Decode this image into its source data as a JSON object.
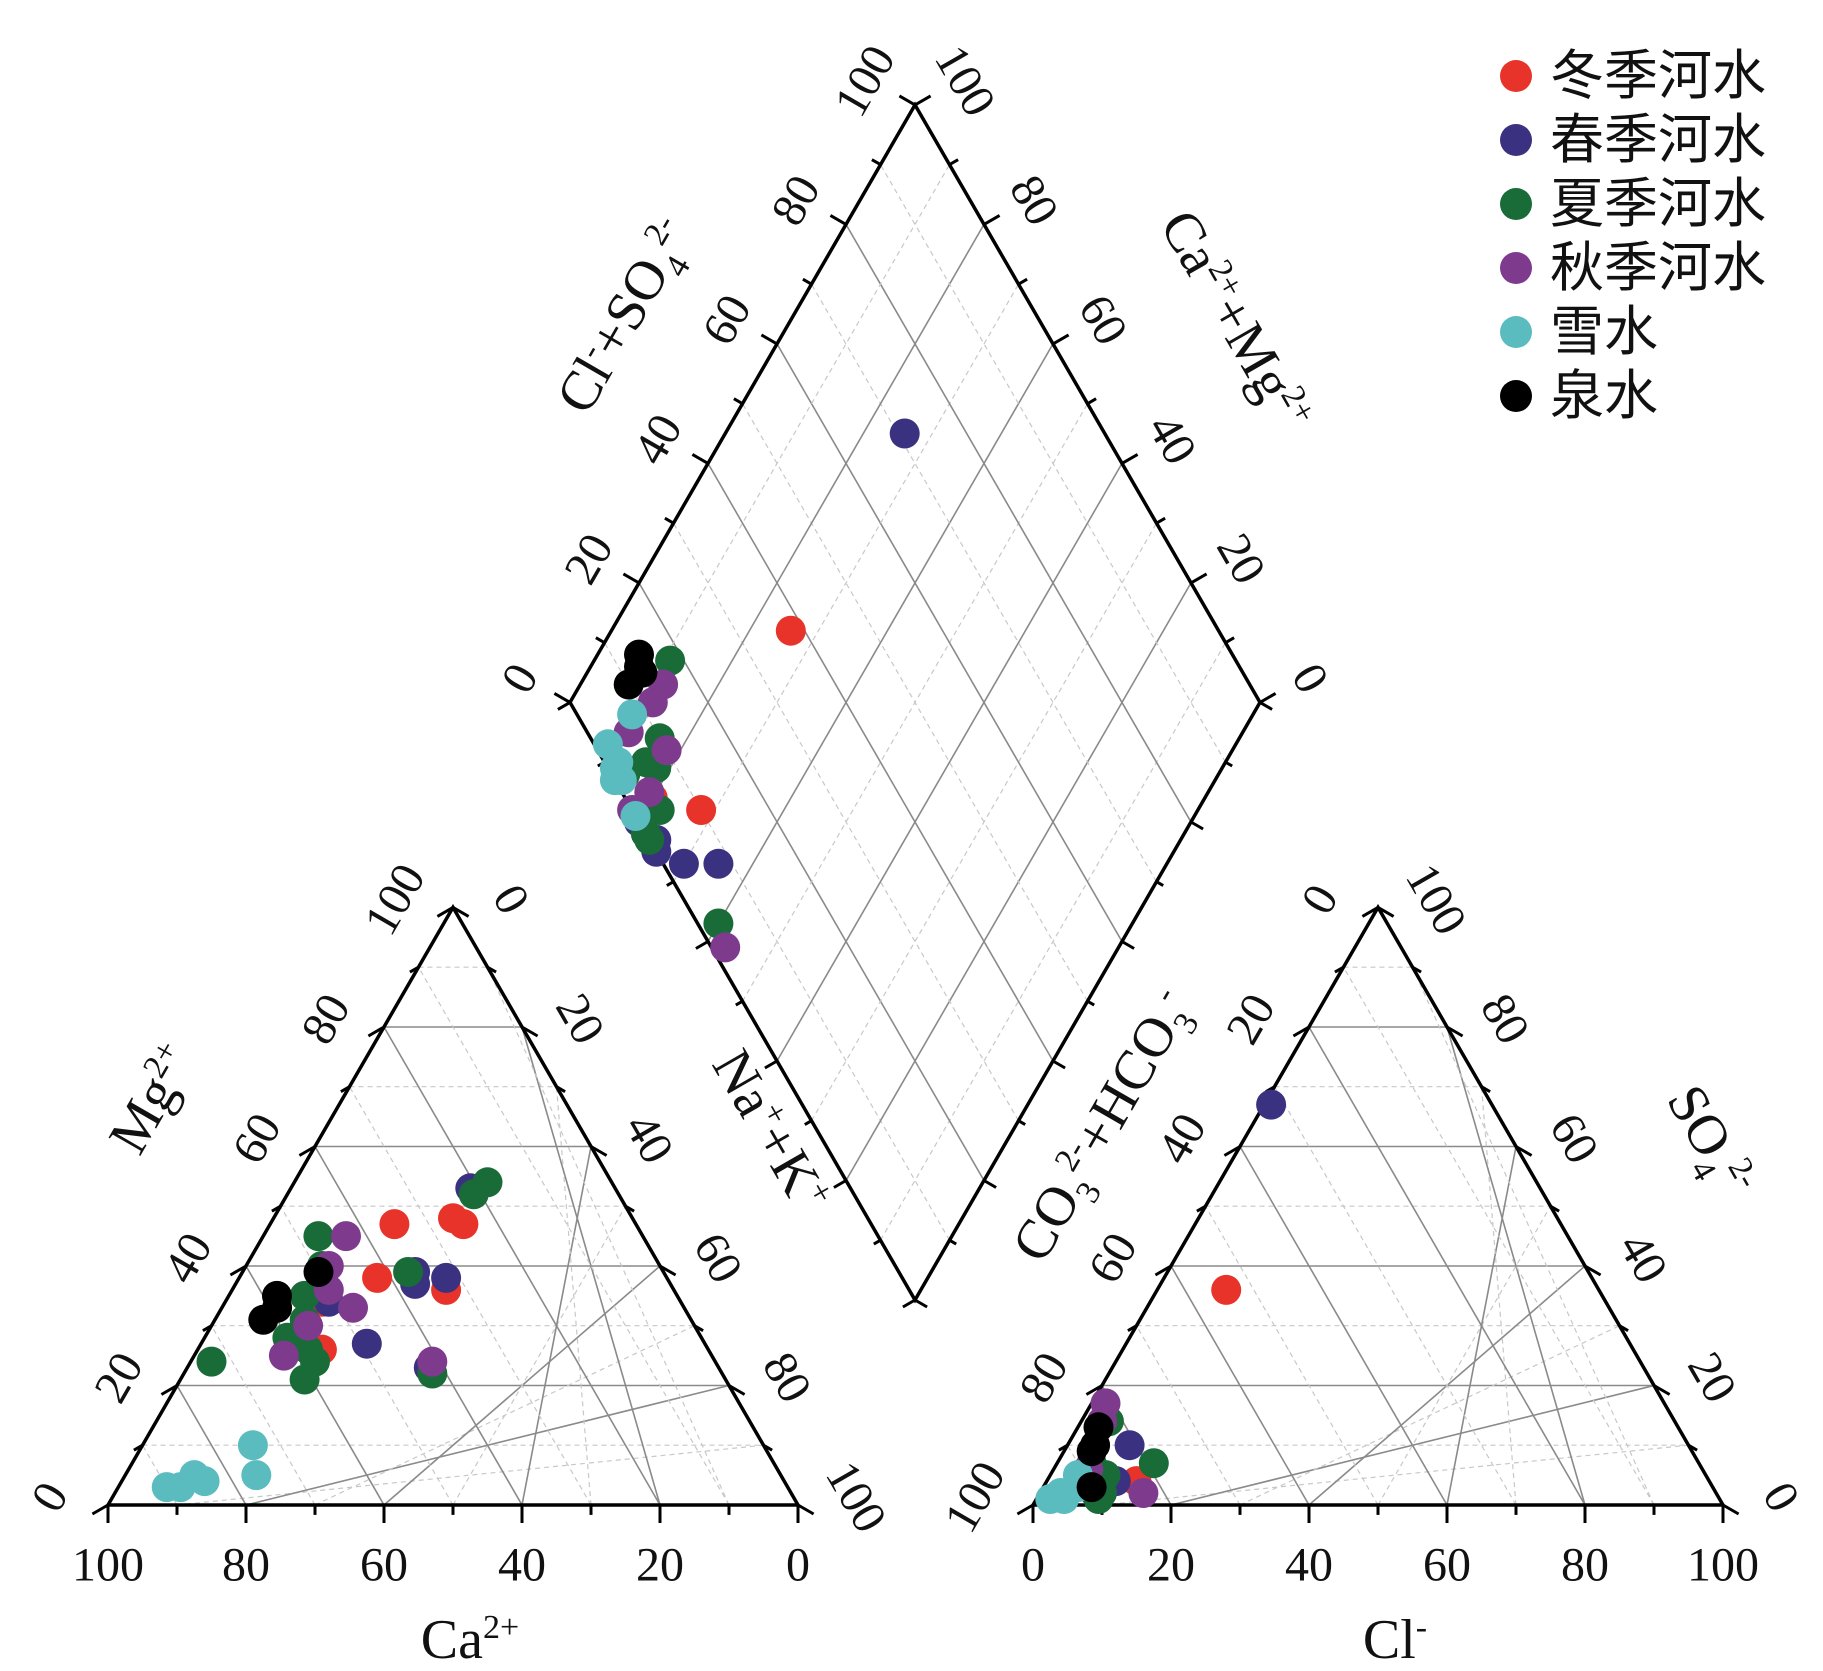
{
  "chart_data": {
    "type": "scatter",
    "subtype": "piper-trilinear",
    "colors": {
      "冬季河水": "#e8332a",
      "春季河水": "#3a3280",
      "夏季河水": "#196b38",
      "秋季河水": "#7e3a8c",
      "雪水": "#5bbcbf",
      "泉水": "#000000"
    },
    "legend": {
      "placement": "top-right",
      "entries": [
        "冬季河水",
        "春季河水",
        "夏季河水",
        "秋季河水",
        "雪水",
        "泉水"
      ]
    },
    "tick_values": [
      "0",
      "20",
      "40",
      "60",
      "80",
      "100"
    ],
    "axes": {
      "cation": {
        "bottom_title": "Ca²⁺",
        "bottom_base": "Ca",
        "bottom_sup": "2+",
        "left_title": "Mg²⁺",
        "left_base": "Mg",
        "left_sup": "2+",
        "right_title": "Na⁺+K⁺"
      },
      "anion": {
        "bottom_title": "Cl⁻",
        "bottom_base": "Cl",
        "bottom_sup": "-",
        "left_title": "CO₃²⁻+HCO₃⁻",
        "right_title": "SO₄²⁻"
      },
      "diamond": {
        "left_title": "Cl⁻+SO₄²⁻",
        "right_title": "Ca²⁺+Mg²⁺"
      }
    },
    "cation_points": [
      {
        "series": "冬季河水",
        "Mg": 47,
        "Na_K": 18
      },
      {
        "series": "冬季河水",
        "Mg": 48,
        "Na_K": 26
      },
      {
        "series": "冬季河水",
        "Mg": 47,
        "Na_K": 28
      },
      {
        "series": "冬季河水",
        "Mg": 38,
        "Na_K": 20
      },
      {
        "series": "冬季河水",
        "Mg": 36,
        "Na_K": 31
      },
      {
        "series": "冬季河水",
        "Mg": 26,
        "Na_K": 18
      },
      {
        "series": "冬季河水",
        "Mg": 34,
        "Na_K": 14
      },
      {
        "series": "春季河水",
        "Mg": 53,
        "Na_K": 26
      },
      {
        "series": "春季河水",
        "Mg": 39,
        "Na_K": 25
      },
      {
        "series": "春季河水",
        "Mg": 37,
        "Na_K": 26
      },
      {
        "series": "春季河水",
        "Mg": 38,
        "Na_K": 30
      },
      {
        "series": "春季河水",
        "Mg": 27,
        "Na_K": 24
      },
      {
        "series": "春季河水",
        "Mg": 23,
        "Na_K": 35
      },
      {
        "series": "春季河水",
        "Mg": 34,
        "Na_K": 15
      },
      {
        "series": "夏季河水",
        "Mg": 54,
        "Na_K": 28
      },
      {
        "series": "夏季河水",
        "Mg": 52,
        "Na_K": 27
      },
      {
        "series": "夏季河水",
        "Mg": 45,
        "Na_K": 8
      },
      {
        "series": "夏季河水",
        "Mg": 40,
        "Na_K": 11
      },
      {
        "series": "夏季河水",
        "Mg": 39,
        "Na_K": 24
      },
      {
        "series": "夏季河水",
        "Mg": 35,
        "Na_K": 11
      },
      {
        "series": "夏季河水",
        "Mg": 31,
        "Na_K": 13
      },
      {
        "series": "夏季河水",
        "Mg": 28,
        "Na_K": 12
      },
      {
        "series": "夏季河水",
        "Mg": 26,
        "Na_K": 16
      },
      {
        "series": "夏季河水",
        "Mg": 24,
        "Na_K": 18
      },
      {
        "series": "夏季河水",
        "Mg": 21,
        "Na_K": 18
      },
      {
        "series": "夏季河水",
        "Mg": 24,
        "Na_K": 3
      },
      {
        "series": "夏季河水",
        "Mg": 22,
        "Na_K": 36
      },
      {
        "series": "秋季河水",
        "Mg": 45,
        "Na_K": 12
      },
      {
        "series": "秋季河水",
        "Mg": 40,
        "Na_K": 12
      },
      {
        "series": "秋季河水",
        "Mg": 36,
        "Na_K": 14
      },
      {
        "series": "秋季河水",
        "Mg": 33,
        "Na_K": 19
      },
      {
        "series": "秋季河水",
        "Mg": 30,
        "Na_K": 14
      },
      {
        "series": "秋季河水",
        "Mg": 25,
        "Na_K": 13
      },
      {
        "series": "秋季河水",
        "Mg": 24,
        "Na_K": 35
      },
      {
        "series": "雪水",
        "Mg": 10,
        "Na_K": 16
      },
      {
        "series": "雪水",
        "Mg": 5,
        "Na_K": 19
      },
      {
        "series": "雪水",
        "Mg": 4,
        "Na_K": 12
      },
      {
        "series": "雪水",
        "Mg": 5,
        "Na_K": 10
      },
      {
        "series": "雪水",
        "Mg": 3,
        "Na_K": 9
      },
      {
        "series": "雪水",
        "Mg": 3,
        "Na_K": 7
      },
      {
        "series": "泉水",
        "Mg": 39,
        "Na_K": 11
      },
      {
        "series": "泉水",
        "Mg": 35,
        "Na_K": 7
      },
      {
        "series": "泉水",
        "Mg": 33,
        "Na_K": 8
      },
      {
        "series": "泉水",
        "Mg": 31,
        "Na_K": 7
      }
    ],
    "anion_points": [
      {
        "series": "冬季河水",
        "Cl": 10,
        "SO4": 36
      },
      {
        "series": "冬季河水",
        "Cl": 13,
        "SO4": 4
      },
      {
        "series": "冬季河水",
        "Cl": 5,
        "SO4": 5
      },
      {
        "series": "春季河水",
        "Cl": 1,
        "SO4": 67
      },
      {
        "series": "春季河水",
        "Cl": 9,
        "SO4": 10
      },
      {
        "series": "春季河水",
        "Cl": 10,
        "SO4": 4
      },
      {
        "series": "春季河水",
        "Cl": 8,
        "SO4": 2
      },
      {
        "series": "夏季河水",
        "Cl": 4,
        "SO4": 14
      },
      {
        "series": "夏季河水",
        "Cl": 14,
        "SO4": 7
      },
      {
        "series": "夏季河水",
        "Cl": 8,
        "SO4": 5
      },
      {
        "series": "夏季河水",
        "Cl": 5,
        "SO4": 7
      },
      {
        "series": "夏季河水",
        "Cl": 9,
        "SO4": 2
      },
      {
        "series": "夏季河水",
        "Cl": 9,
        "SO4": 1
      },
      {
        "series": "夏季河水",
        "Cl": 7,
        "SO4": 3
      },
      {
        "series": "秋季河水",
        "Cl": 2,
        "SO4": 17
      },
      {
        "series": "秋季河水",
        "Cl": 3,
        "SO4": 14
      },
      {
        "series": "秋季河水",
        "Cl": 15,
        "SO4": 2
      },
      {
        "series": "秋季河水",
        "Cl": 5,
        "SO4": 6
      },
      {
        "series": "雪水",
        "Cl": 4,
        "SO4": 5
      },
      {
        "series": "雪水",
        "Cl": 5,
        "SO4": 3
      },
      {
        "series": "雪水",
        "Cl": 4,
        "SO4": 1
      },
      {
        "series": "雪水",
        "Cl": 3,
        "SO4": 2
      },
      {
        "series": "雪水",
        "Cl": 2,
        "SO4": 1
      },
      {
        "series": "泉水",
        "Cl": 3,
        "SO4": 13
      },
      {
        "series": "泉水",
        "Cl": 4,
        "SO4": 9
      },
      {
        "series": "泉水",
        "Cl": 4,
        "SO4": 10
      },
      {
        "series": "泉水",
        "Cl": 7,
        "SO4": 3
      }
    ],
    "diamond_points": [
      {
        "series": "冬季河水",
        "Cl_SO4": 38,
        "Na_K": 26
      },
      {
        "series": "冬季河水",
        "Cl_SO4": 10,
        "Na_K": 28
      },
      {
        "series": "冬季河水",
        "Cl_SO4": 4,
        "Na_K": 20
      },
      {
        "series": "冬季河水",
        "Cl_SO4": 2,
        "Na_K": 14
      },
      {
        "series": "春季河水",
        "Cl_SO4": 71,
        "Na_K": 26
      },
      {
        "series": "春季河水",
        "Cl_SO4": 8,
        "Na_K": 35
      },
      {
        "series": "春季河水",
        "Cl_SO4": 0,
        "Na_K": 25
      },
      {
        "series": "春季河水",
        "Cl_SO4": 3,
        "Na_K": 30
      },
      {
        "series": "春季河水",
        "Cl_SO4": 1,
        "Na_K": 24
      },
      {
        "series": "春季河水",
        "Cl_SO4": 0,
        "Na_K": 20
      },
      {
        "series": "夏季河水",
        "Cl_SO4": 18,
        "Na_K": 11
      },
      {
        "series": "夏季河水",
        "Cl_SO4": 10,
        "Na_K": 16
      },
      {
        "series": "夏季河水",
        "Cl_SO4": 7,
        "Na_K": 18
      },
      {
        "series": "夏季河水",
        "Cl_SO4": 6,
        "Na_K": 16
      },
      {
        "series": "夏季河水",
        "Cl_SO4": 4,
        "Na_K": 22
      },
      {
        "series": "夏季河水",
        "Cl_SO4": 2,
        "Na_K": 14
      },
      {
        "series": "夏季河水",
        "Cl_SO4": 1,
        "Na_K": 20
      },
      {
        "series": "夏季河水",
        "Cl_SO4": 0,
        "Na_K": 23
      },
      {
        "series": "夏季河水",
        "Cl_SO4": 0,
        "Na_K": 22
      },
      {
        "series": "夏季河水",
        "Cl_SO4": 3,
        "Na_K": 40
      },
      {
        "series": "秋季河水",
        "Cl_SO4": 15,
        "Na_K": 12
      },
      {
        "series": "秋季河水",
        "Cl_SO4": 12,
        "Na_K": 12
      },
      {
        "series": "秋季河水",
        "Cl_SO4": 10,
        "Na_K": 18
      },
      {
        "series": "秋季河水",
        "Cl_SO4": 6,
        "Na_K": 11
      },
      {
        "series": "秋季河水",
        "Cl_SO4": 4,
        "Na_K": 19
      },
      {
        "series": "秋季河水",
        "Cl_SO4": 0,
        "Na_K": 18
      },
      {
        "series": "秋季河水",
        "Cl_SO4": 2,
        "Na_K": 43
      },
      {
        "series": "雪水",
        "Cl_SO4": 8,
        "Na_K": 10
      },
      {
        "series": "雪水",
        "Cl_SO4": 2,
        "Na_K": 9
      },
      {
        "series": "雪水",
        "Cl_SO4": 1,
        "Na_K": 12
      },
      {
        "series": "雪水",
        "Cl_SO4": 2,
        "Na_K": 12
      },
      {
        "series": "雪水",
        "Cl_SO4": 1,
        "Na_K": 14
      },
      {
        "series": "雪水",
        "Cl_SO4": 0,
        "Na_K": 13
      },
      {
        "series": "雪水",
        "Cl_SO4": 0,
        "Na_K": 19
      },
      {
        "series": "泉水",
        "Cl_SO4": 14,
        "Na_K": 6
      },
      {
        "series": "泉水",
        "Cl_SO4": 13,
        "Na_K": 7
      },
      {
        "series": "泉水",
        "Cl_SO4": 13,
        "Na_K": 8
      },
      {
        "series": "泉水",
        "Cl_SO4": 10,
        "Na_K": 7
      }
    ]
  }
}
